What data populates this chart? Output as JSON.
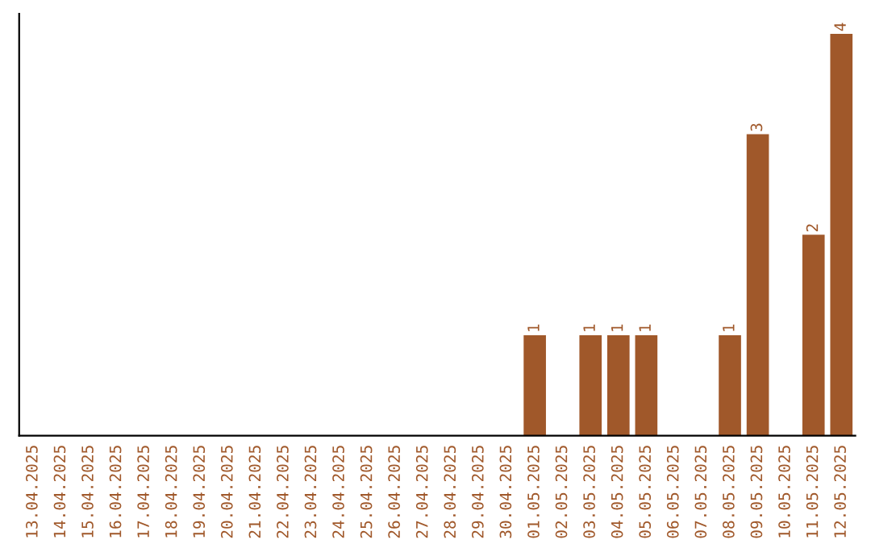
{
  "chart_data": {
    "type": "bar",
    "categories": [
      "13.04.2025",
      "14.04.2025",
      "15.04.2025",
      "16.04.2025",
      "17.04.2025",
      "18.04.2025",
      "19.04.2025",
      "20.04.2025",
      "21.04.2025",
      "22.04.2025",
      "23.04.2025",
      "24.04.2025",
      "25.04.2025",
      "26.04.2025",
      "27.04.2025",
      "28.04.2025",
      "29.04.2025",
      "30.04.2025",
      "01.05.2025",
      "02.05.2025",
      "03.05.2025",
      "04.05.2025",
      "05.05.2025",
      "06.05.2025",
      "07.05.2025",
      "08.05.2025",
      "09.05.2025",
      "10.05.2025",
      "11.05.2025",
      "12.05.2025"
    ],
    "values": [
      null,
      null,
      null,
      null,
      null,
      null,
      null,
      null,
      null,
      null,
      null,
      null,
      null,
      null,
      null,
      null,
      null,
      null,
      1,
      null,
      1,
      1,
      1,
      null,
      null,
      1,
      3,
      null,
      2,
      4
    ],
    "data_labels": true,
    "color": "#a0582a",
    "tick_labels": "x"
  }
}
